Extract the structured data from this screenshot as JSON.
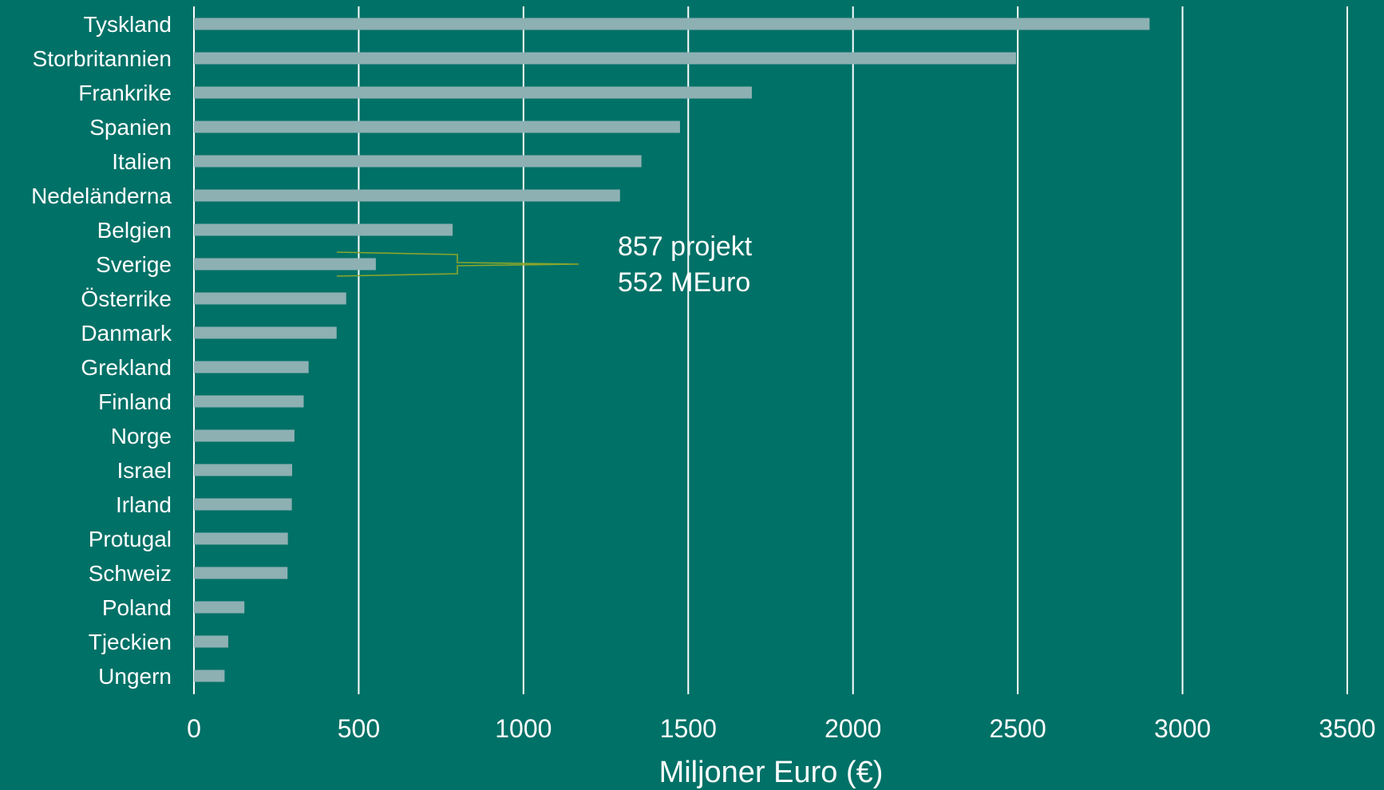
{
  "chart_data": {
    "type": "bar",
    "orientation": "horizontal",
    "categories": [
      "Tyskland",
      "Storbritannien",
      "Frankrike",
      "Spanien",
      "Italien",
      "Nedeländerna",
      "Belgien",
      "Sverige",
      "Österrike",
      "Danmark",
      "Grekland",
      "Finland",
      "Norge",
      "Israel",
      "Irland",
      "Protugal",
      "Schweiz",
      "Poland",
      "Tjeckien",
      "Ungern"
    ],
    "values": [
      2900,
      2495,
      1693,
      1475,
      1358,
      1293,
      785,
      552,
      462,
      433,
      348,
      333,
      305,
      298,
      297,
      285,
      284,
      153,
      104,
      93
    ],
    "xlabel": "Miljoner Euro (€)",
    "ylabel": "",
    "xlim": [
      0,
      3500
    ],
    "x_ticks": [
      0,
      500,
      1000,
      1500,
      2000,
      2500,
      3000,
      3500
    ],
    "grid": true,
    "grid_axis": "x",
    "legend": "none",
    "colors": {
      "background": "#007167",
      "bar": "#8db0b3",
      "grid": "#ffffff",
      "text": "#ffffff",
      "annotation_bracket": "#8ba62a"
    },
    "annotation": {
      "target_category": "Sverige",
      "lines": [
        "857 projekt",
        "552 MEuro"
      ]
    }
  }
}
